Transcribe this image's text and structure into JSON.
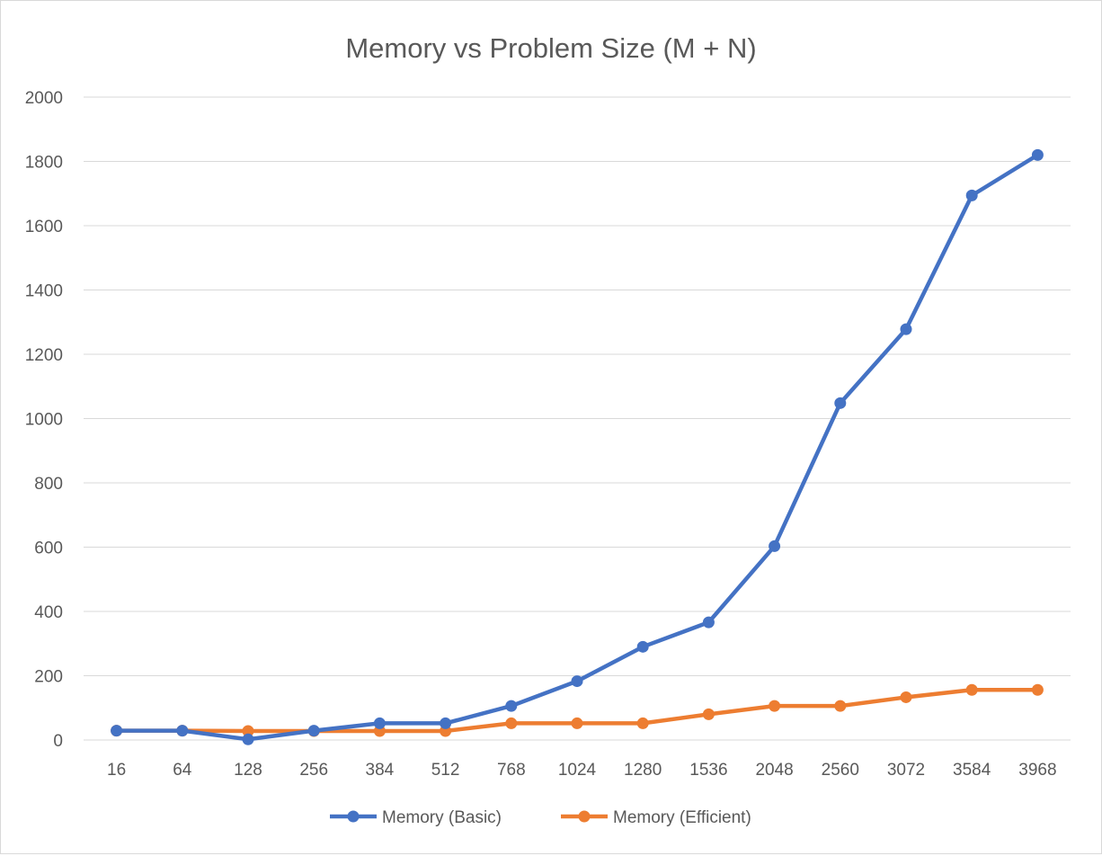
{
  "chart_data": {
    "type": "line",
    "title": "Memory vs Problem Size (M + N)",
    "xlabel": "",
    "ylabel": "",
    "categories": [
      "16",
      "64",
      "128",
      "256",
      "384",
      "512",
      "768",
      "1024",
      "1280",
      "1536",
      "2048",
      "2560",
      "3072",
      "3584",
      "3968"
    ],
    "ylim": [
      0,
      2000
    ],
    "yticks": [
      "0",
      "200",
      "400",
      "600",
      "800",
      "1000",
      "1200",
      "1400",
      "1600",
      "1800",
      "2000"
    ],
    "grid": true,
    "legend_position": "bottom",
    "series": [
      {
        "name": "Memory (Basic)",
        "color": "#4472c4",
        "values": [
          29,
          29,
          2,
          29,
          52,
          52,
          106,
          183,
          290,
          366,
          603,
          1048,
          1278,
          1694,
          1820
        ]
      },
      {
        "name": "Memory (Efficient)",
        "color": "#ed7d31",
        "values": [
          29,
          29,
          28,
          28,
          28,
          28,
          52,
          52,
          52,
          80,
          106,
          106,
          133,
          156,
          156
        ]
      }
    ]
  }
}
